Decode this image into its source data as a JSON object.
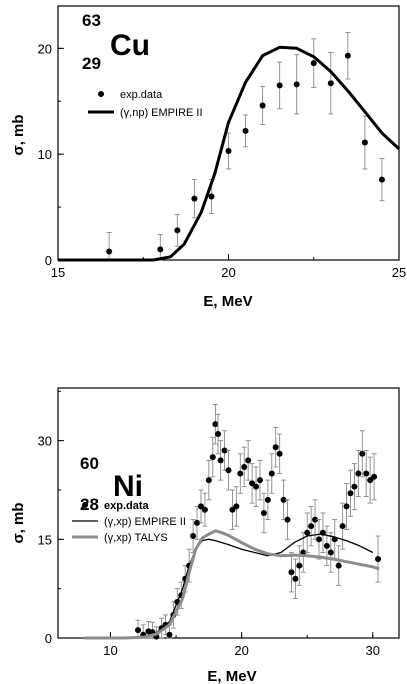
{
  "chart_data": [
    {
      "type": "scatter",
      "nucleus": {
        "mass": "63",
        "charge": "29",
        "symbol": "Cu"
      },
      "xlabel": "E, MeV",
      "ylabel": "σ, mb",
      "xlim": [
        15,
        25
      ],
      "ylim": [
        0,
        24
      ],
      "xticks": [
        "15",
        "20",
        "25"
      ],
      "yticks": [
        "0",
        "10",
        "20"
      ],
      "legend_position": "upper-left",
      "series": [
        {
          "name": "exp.data",
          "kind": "points",
          "color": "#000000",
          "x": [
            16.5,
            18.0,
            18.5,
            19.0,
            19.5,
            20.0,
            20.5,
            21.0,
            21.5,
            22.0,
            22.5,
            23.0,
            23.5,
            24.0,
            24.5
          ],
          "y": [
            0.8,
            1.0,
            2.8,
            5.8,
            6.0,
            10.3,
            12.2,
            14.6,
            16.5,
            16.6,
            18.6,
            16.7,
            19.3,
            11.1,
            7.6
          ],
          "err": [
            1.8,
            1.4,
            1.5,
            1.8,
            1.6,
            1.7,
            1.5,
            1.8,
            2.2,
            2.8,
            2.3,
            2.9,
            2.2,
            2.5,
            2.0
          ]
        },
        {
          "name": "(γ,np) EMPIRE II",
          "kind": "line",
          "color": "#000000",
          "x": [
            15.0,
            17.8,
            18.3,
            18.7,
            19.2,
            19.6,
            20.0,
            20.5,
            21.0,
            21.5,
            22.0,
            22.5,
            23.0,
            23.5,
            24.0,
            24.5,
            25.0
          ],
          "y": [
            0.0,
            0.0,
            0.3,
            1.5,
            4.5,
            8.2,
            13.0,
            16.8,
            19.3,
            20.1,
            20.0,
            19.2,
            17.8,
            16.0,
            14.0,
            12.0,
            10.5
          ]
        }
      ]
    },
    {
      "type": "scatter",
      "nucleus": {
        "mass": "60",
        "charge": "28",
        "symbol": "Ni"
      },
      "xlabel": "E, MeV",
      "ylabel": "σ, mb",
      "xlim": [
        6,
        32
      ],
      "ylim": [
        0,
        38
      ],
      "xticks": [
        "10",
        "20",
        "30"
      ],
      "yticks": [
        "0",
        "15",
        "30"
      ],
      "legend_position": "middle-left",
      "series": [
        {
          "name": "exp.data",
          "kind": "points",
          "color": "#000000",
          "x": [
            12.1,
            12.5,
            12.9,
            13.2,
            13.5,
            13.9,
            14.2,
            14.5,
            14.8,
            15.1,
            15.4,
            15.7,
            16.0,
            16.3,
            16.6,
            16.9,
            17.2,
            17.5,
            17.8,
            18.0,
            18.2,
            18.4,
            18.7,
            19.0,
            19.3,
            19.6,
            19.9,
            20.2,
            20.5,
            20.8,
            21.1,
            21.4,
            21.7,
            22.0,
            22.3,
            22.6,
            22.9,
            23.2,
            23.5,
            23.8,
            24.1,
            24.4,
            24.7,
            25.0,
            25.3,
            25.6,
            25.9,
            26.2,
            26.5,
            26.8,
            27.1,
            27.4,
            27.7,
            28.0,
            28.3,
            28.6,
            28.9,
            29.2,
            29.5,
            29.8,
            30.1,
            30.4
          ],
          "y": [
            1.2,
            0.5,
            1.0,
            0.9,
            0.2,
            1.5,
            2.0,
            0.5,
            3.5,
            5.5,
            6.5,
            9.0,
            11.0,
            15.5,
            17.5,
            20.0,
            19.5,
            24.0,
            27.5,
            32.5,
            31.0,
            27.0,
            28.5,
            25.5,
            19.5,
            20.0,
            25.0,
            26.0,
            27.0,
            23.5,
            23.0,
            24.0,
            19.0,
            21.0,
            25.0,
            29.0,
            28.0,
            21.0,
            18.0,
            10.0,
            9.0,
            11.0,
            13.0,
            16.0,
            17.0,
            18.0,
            15.0,
            16.0,
            14.0,
            13.0,
            15.0,
            11.0,
            17.0,
            20.0,
            22.0,
            23.0,
            25.0,
            28.0,
            25.0,
            24.0,
            24.5,
            12.0
          ],
          "err": [
            1.5,
            1.5,
            1.5,
            1.5,
            1.5,
            1.5,
            1.5,
            1.5,
            2.0,
            2.0,
            2.0,
            2.0,
            2.5,
            2.5,
            2.5,
            2.5,
            2.5,
            3.0,
            3.0,
            3.0,
            3.0,
            3.0,
            3.0,
            3.0,
            3.0,
            3.0,
            3.0,
            3.0,
            3.0,
            3.0,
            3.0,
            3.0,
            3.0,
            3.0,
            3.0,
            3.0,
            3.0,
            3.0,
            3.0,
            3.0,
            3.0,
            3.0,
            3.0,
            3.0,
            3.0,
            3.0,
            3.0,
            3.0,
            3.0,
            3.0,
            3.0,
            3.0,
            3.5,
            3.5,
            3.5,
            3.5,
            3.5,
            3.5,
            3.5,
            3.5,
            3.5,
            3.5
          ]
        },
        {
          "name": "(γ,xp) EMPIRE II",
          "kind": "line",
          "color": "#000000",
          "x": [
            8.0,
            11.0,
            12.5,
            13.5,
            14.5,
            15.5,
            16.0,
            16.5,
            17.0,
            17.5,
            18.0,
            19.0,
            20.0,
            21.0,
            22.0,
            23.0,
            24.0,
            25.0,
            26.0,
            27.0,
            28.0,
            29.0,
            30.0
          ],
          "y": [
            0.0,
            0.0,
            0.2,
            0.8,
            2.5,
            7.5,
            11.0,
            13.5,
            14.8,
            15.0,
            14.8,
            14.2,
            13.5,
            13.0,
            12.5,
            13.0,
            14.5,
            15.5,
            15.8,
            15.4,
            14.8,
            14.0,
            13.0
          ]
        },
        {
          "name": "(γ,xp) TALYS",
          "kind": "line",
          "color": "#8c8c8c",
          "x": [
            8.0,
            11.0,
            12.5,
            13.5,
            14.5,
            15.5,
            16.0,
            16.5,
            17.0,
            17.5,
            18.0,
            18.5,
            19.0,
            20.0,
            21.0,
            22.0,
            23.0,
            24.0,
            25.0,
            26.0,
            27.0,
            28.0,
            29.0,
            30.0,
            30.5
          ],
          "y": [
            0.0,
            0.0,
            0.1,
            0.6,
            2.0,
            6.0,
            10.0,
            13.5,
            15.2,
            15.8,
            16.3,
            16.0,
            15.6,
            14.5,
            13.5,
            12.8,
            12.5,
            12.6,
            12.5,
            12.3,
            12.0,
            11.6,
            11.2,
            10.8,
            10.5
          ]
        }
      ]
    }
  ]
}
